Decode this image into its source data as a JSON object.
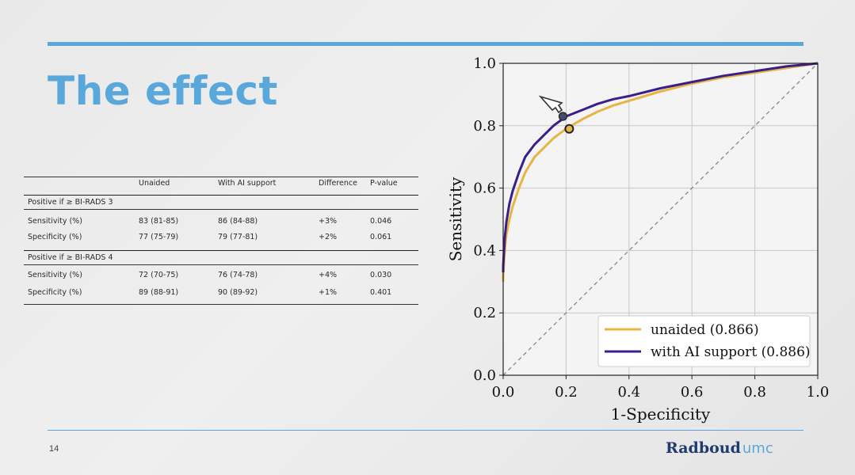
{
  "slide": {
    "title": "The effect",
    "page_number": "14",
    "logo": {
      "main": "Radboud",
      "suffix": "umc"
    },
    "accent_color": "#5aa8db"
  },
  "table": {
    "headers": [
      "",
      "Unaided",
      "With AI support",
      "Difference",
      "P-value"
    ],
    "sections": [
      {
        "label": "Positive if ≥ BI-RADS 3",
        "rows": [
          {
            "metric": "Sensitivity (%)",
            "unaided": "83 (81-85)",
            "ai": "86 (84-88)",
            "diff": "+3%",
            "p": "0.046"
          },
          {
            "metric": "Specificity (%)",
            "unaided": "77 (75-79)",
            "ai": "79 (77-81)",
            "diff": "+2%",
            "p": "0.061"
          }
        ]
      },
      {
        "label": "Positive if ≥ BI-RADS 4",
        "rows": [
          {
            "metric": "Sensitivity (%)",
            "unaided": "72 (70-75)",
            "ai": "76 (74-78)",
            "diff": "+4%",
            "p": "0.030"
          },
          {
            "metric": "Specificity (%)",
            "unaided": "89 (88-91)",
            "ai": "90 (89-92)",
            "diff": "+1%",
            "p": "0.401"
          }
        ]
      }
    ]
  },
  "chart_data": {
    "type": "line",
    "xlabel": "1-Specificity",
    "ylabel": "Sensitivity",
    "xlim": [
      0,
      1
    ],
    "ylim": [
      0,
      1
    ],
    "xticks": [
      "0.0",
      "0.2",
      "0.4",
      "0.6",
      "0.8",
      "1.0"
    ],
    "yticks": [
      "0.0",
      "0.2",
      "0.4",
      "0.6",
      "0.8",
      "1.0"
    ],
    "grid": true,
    "legend_position": "bottom-right",
    "series": [
      {
        "name": "unaided (0.866)",
        "color": "#e8b443",
        "x": [
          0,
          0.005,
          0.01,
          0.02,
          0.03,
          0.05,
          0.07,
          0.1,
          0.13,
          0.16,
          0.2,
          0.25,
          0.3,
          0.35,
          0.4,
          0.5,
          0.6,
          0.7,
          0.8,
          0.9,
          1.0
        ],
        "y": [
          0.32,
          0.4,
          0.45,
          0.5,
          0.54,
          0.6,
          0.65,
          0.7,
          0.73,
          0.76,
          0.79,
          0.82,
          0.845,
          0.865,
          0.88,
          0.91,
          0.935,
          0.955,
          0.97,
          0.985,
          1.0
        ]
      },
      {
        "name": "with AI support (0.886)",
        "color": "#3a1f8c",
        "x": [
          0,
          0.005,
          0.01,
          0.02,
          0.03,
          0.05,
          0.07,
          0.1,
          0.13,
          0.16,
          0.2,
          0.25,
          0.3,
          0.35,
          0.4,
          0.5,
          0.6,
          0.7,
          0.8,
          0.9,
          1.0
        ],
        "y": [
          0.35,
          0.44,
          0.49,
          0.55,
          0.59,
          0.65,
          0.7,
          0.74,
          0.77,
          0.8,
          0.83,
          0.85,
          0.87,
          0.885,
          0.895,
          0.92,
          0.94,
          0.96,
          0.975,
          0.99,
          1.0
        ]
      }
    ],
    "reference_line": {
      "x": [
        0,
        1
      ],
      "y": [
        0,
        1
      ],
      "color": "#888888"
    },
    "markers": [
      {
        "series": "unaided",
        "x": 0.21,
        "y": 0.79,
        "fill": "#e8b443"
      },
      {
        "series": "with AI support",
        "x": 0.19,
        "y": 0.83,
        "fill": "#4a4a6a"
      }
    ]
  }
}
